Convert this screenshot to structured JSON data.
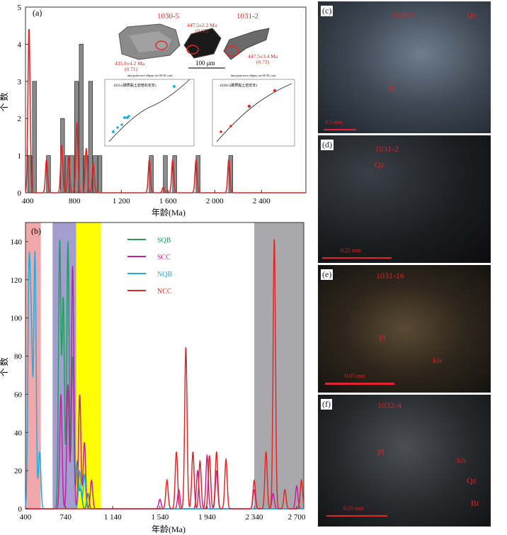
{
  "panel_a": {
    "label": "(a)",
    "ylabel": "个 数",
    "xlabel": "年龄(Ma)",
    "xticks": [
      "400",
      "800",
      "1 200",
      "1 600",
      "2 000",
      "2 400"
    ],
    "yticks": [
      "0",
      "1",
      "2",
      "3",
      "4",
      "5"
    ],
    "sample_labels": [
      "1030-5",
      "1031-2"
    ],
    "age_annotations": [
      {
        "age": "447.5±2.2 Ma",
        "sub": "(0.61)"
      },
      {
        "age": "435.8±4.2 Ma",
        "sub": "(0.71)"
      },
      {
        "age": "447.5±3.4 Ma",
        "sub": "(0.73)"
      }
    ],
    "scale_label": "100 μm",
    "inset_left_title": "1031c(碳质黏土岩锆石定年)",
    "inset_right_title": "1030c5(碳质黏土岩定年)",
    "inset_header": "data-point error ellipses are 68.3% conf."
  },
  "panel_b": {
    "label": "(b)",
    "ylabel": "个 数",
    "xlabel": "年龄(Ma)",
    "xticks": [
      "400",
      "740",
      "1 140",
      "1 540",
      "1 940",
      "2 340",
      "2 700"
    ],
    "yticks": [
      "0",
      "20",
      "40",
      "60",
      "80",
      "100",
      "120",
      "140"
    ],
    "legend": [
      {
        "name": "SQB",
        "color": "#1aa05a"
      },
      {
        "name": "SCC",
        "color": "#c81ea0"
      },
      {
        "name": "NQB",
        "color": "#1eaee0"
      },
      {
        "name": "NCC",
        "color": "#e02828"
      }
    ]
  },
  "micrographs": [
    {
      "panel": "(c)",
      "sample": "1030-5",
      "labels": [
        "Qz",
        "Pl"
      ],
      "scale": "0.5 mm"
    },
    {
      "panel": "(d)",
      "sample": "1031-2",
      "labels": [
        "Qz"
      ],
      "scale": "0.25 mm"
    },
    {
      "panel": "(e)",
      "sample": "1031-16",
      "labels": [
        "Pl",
        "Kfs"
      ],
      "scale": "0.05 mm"
    },
    {
      "panel": "(f)",
      "sample": "1032-4",
      "labels": [
        "Pl",
        "Kfs",
        "Qz",
        "Bt"
      ],
      "scale": "0.05 mm"
    }
  ],
  "chart_data": [
    {
      "type": "bar",
      "panel": "(a)",
      "xlabel": "年龄(Ma)",
      "ylabel": "个 数",
      "xlim": [
        380,
        2780
      ],
      "ylim": [
        0,
        5
      ],
      "bin_width": 40,
      "bins": [
        {
          "x": 400,
          "count": 1
        },
        {
          "x": 440,
          "count": 3
        },
        {
          "x": 560,
          "count": 1
        },
        {
          "x": 680,
          "count": 2
        },
        {
          "x": 720,
          "count": 1
        },
        {
          "x": 760,
          "count": 1
        },
        {
          "x": 800,
          "count": 3
        },
        {
          "x": 840,
          "count": 4
        },
        {
          "x": 880,
          "count": 1
        },
        {
          "x": 920,
          "count": 3
        },
        {
          "x": 960,
          "count": 1
        },
        {
          "x": 1000,
          "count": 1
        },
        {
          "x": 1440,
          "count": 1
        },
        {
          "x": 1560,
          "count": 1
        },
        {
          "x": 1640,
          "count": 1
        },
        {
          "x": 1840,
          "count": 1
        },
        {
          "x": 2120,
          "count": 1
        }
      ],
      "kde_peaks": [
        {
          "x": 410,
          "y": 4.5
        },
        {
          "x": 560,
          "y": 0.9
        },
        {
          "x": 690,
          "y": 1.3
        },
        {
          "x": 750,
          "y": 1.0
        },
        {
          "x": 820,
          "y": 1.9
        },
        {
          "x": 900,
          "y": 1.2
        },
        {
          "x": 960,
          "y": 0.8
        },
        {
          "x": 1440,
          "y": 0.9
        },
        {
          "x": 1560,
          "y": 0.15
        },
        {
          "x": 1640,
          "y": 0.9
        },
        {
          "x": 1840,
          "y": 0.9
        },
        {
          "x": 2120,
          "y": 0.9
        }
      ]
    },
    {
      "type": "line",
      "panel": "(b)",
      "xlabel": "年龄(Ma)",
      "ylabel": "个 数",
      "xlim": [
        400,
        2760
      ],
      "ylim": [
        0,
        150
      ],
      "bands": [
        {
          "from": 400,
          "to": 530,
          "color": "#f2a8aa"
        },
        {
          "from": 630,
          "to": 830,
          "color": "#a49ed0"
        },
        {
          "from": 830,
          "to": 1040,
          "color": "#ffff00"
        },
        {
          "from": 2340,
          "to": 2760,
          "color": "#a9a9ad"
        }
      ],
      "series": [
        {
          "name": "SQB",
          "color": "#1aa05a",
          "peaks": [
            [
              690,
              140
            ],
            [
              720,
              110
            ],
            [
              760,
              140
            ],
            [
              800,
              80
            ],
            [
              840,
              25
            ],
            [
              870,
              10
            ],
            [
              930,
              8
            ]
          ]
        },
        {
          "name": "SCC",
          "color": "#c81ea0",
          "peaks": [
            [
              700,
              60
            ],
            [
              760,
              65
            ],
            [
              800,
              128
            ],
            [
              860,
              60
            ],
            [
              900,
              35
            ],
            [
              960,
              15
            ],
            [
              1540,
              5
            ],
            [
              1700,
              10
            ],
            [
              1860,
              20
            ],
            [
              1940,
              28
            ],
            [
              2020,
              20
            ],
            [
              2340,
              10
            ],
            [
              2500,
              8
            ],
            [
              2700,
              12
            ]
          ]
        },
        {
          "name": "NQB",
          "color": "#1eaee0",
          "peaks": [
            [
              430,
              120
            ],
            [
              450,
              85
            ],
            [
              480,
              135
            ],
            [
              520,
              30
            ],
            [
              860,
              20
            ],
            [
              900,
              18
            ]
          ]
        },
        {
          "name": "NCC",
          "color": "#e02828",
          "peaks": [
            [
              1600,
              15
            ],
            [
              1680,
              30
            ],
            [
              1760,
              85
            ],
            [
              1820,
              30
            ],
            [
              1880,
              25
            ],
            [
              1960,
              28
            ],
            [
              2020,
              30
            ],
            [
              2100,
              26
            ],
            [
              2340,
              15
            ],
            [
              2440,
              30
            ],
            [
              2510,
              142
            ],
            [
              2600,
              10
            ],
            [
              2740,
              15
            ]
          ]
        }
      ]
    }
  ]
}
